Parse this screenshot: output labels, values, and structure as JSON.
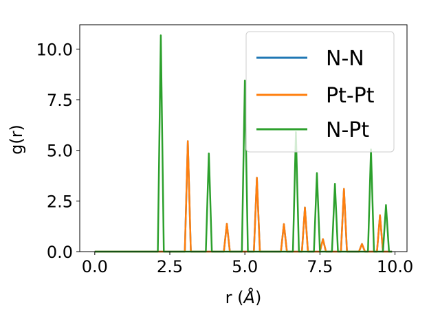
{
  "chart_data": {
    "type": "line",
    "title": "",
    "xlabel_main": "r (",
    "xlabel_symbol": "Å",
    "xlabel_close": ")",
    "ylabel": "g(r)",
    "xlim": [
      -0.5,
      10.4
    ],
    "ylim": [
      0.0,
      11.2
    ],
    "xticks": [
      "0.0",
      "2.5",
      "5.0",
      "7.5",
      "10.0"
    ],
    "yticks": [
      "0.0",
      "2.5",
      "5.0",
      "7.5",
      "10.0"
    ],
    "grid": false,
    "legend_position": "top-right",
    "x": [
      0.0,
      0.1,
      0.2,
      0.3,
      0.4,
      0.5,
      0.6,
      0.7,
      0.8,
      0.9,
      1.0,
      1.1,
      1.2,
      1.3,
      1.4,
      1.5,
      1.6,
      1.7,
      1.8,
      1.9,
      2.0,
      2.1,
      2.2,
      2.3,
      2.4,
      2.5,
      2.6,
      2.7,
      2.8,
      2.9,
      3.0,
      3.1,
      3.2,
      3.3,
      3.4,
      3.5,
      3.6,
      3.7,
      3.8,
      3.9,
      4.0,
      4.1,
      4.2,
      4.3,
      4.4,
      4.5,
      4.6,
      4.7,
      4.8,
      4.9,
      5.0,
      5.1,
      5.2,
      5.3,
      5.4,
      5.5,
      5.6,
      5.7,
      5.8,
      5.9,
      6.0,
      6.1,
      6.2,
      6.3,
      6.4,
      6.5,
      6.6,
      6.7,
      6.8,
      6.9,
      7.0,
      7.1,
      7.2,
      7.3,
      7.4,
      7.5,
      7.6,
      7.7,
      7.8,
      7.9,
      8.0,
      8.1,
      8.2,
      8.3,
      8.4,
      8.5,
      8.6,
      8.7,
      8.8,
      8.9,
      9.0,
      9.1,
      9.2,
      9.3,
      9.4,
      9.5,
      9.6,
      9.7,
      9.8,
      9.9
    ],
    "series": [
      {
        "name": "N-N",
        "color": "#1f77b4",
        "values": [
          0,
          0,
          0,
          0,
          0,
          0,
          0,
          0,
          0,
          0,
          0,
          0,
          0,
          0,
          0,
          0,
          0,
          0,
          0,
          0,
          0,
          0,
          0,
          0,
          0,
          0,
          0,
          0,
          0,
          0,
          0,
          5.45,
          0,
          0,
          0,
          0,
          0,
          0,
          0,
          0,
          0,
          0,
          0,
          0,
          1.38,
          0,
          0,
          0,
          0,
          0,
          0,
          0,
          0,
          0,
          3.65,
          0,
          0,
          0,
          0,
          0,
          0,
          0,
          0,
          1.36,
          0,
          0,
          0,
          0,
          0,
          0,
          2.18,
          0,
          0,
          0,
          0,
          0,
          0.62,
          0,
          0,
          0,
          0,
          0,
          0,
          3.1,
          0,
          0,
          0,
          0,
          0,
          0.38,
          0,
          0,
          0,
          0,
          0,
          1.8,
          0,
          0,
          0,
          0
        ]
      },
      {
        "name": "Pt-Pt",
        "color": "#ff7f0e",
        "values": [
          0,
          0,
          0,
          0,
          0,
          0,
          0,
          0,
          0,
          0,
          0,
          0,
          0,
          0,
          0,
          0,
          0,
          0,
          0,
          0,
          0,
          0,
          0,
          0,
          0,
          0,
          0,
          0,
          0,
          0,
          0,
          5.45,
          0,
          0,
          0,
          0,
          0,
          0,
          0,
          0,
          0,
          0,
          0,
          0,
          1.38,
          0,
          0,
          0,
          0,
          0,
          0,
          0,
          0,
          0,
          3.65,
          0,
          0,
          0,
          0,
          0,
          0,
          0,
          0,
          1.36,
          0,
          0,
          0,
          0,
          0,
          0,
          2.18,
          0,
          0,
          0,
          0,
          0,
          0.62,
          0,
          0,
          0,
          0,
          0,
          0,
          3.1,
          0,
          0,
          0,
          0,
          0,
          0.38,
          0,
          0,
          0,
          0,
          0,
          1.8,
          0,
          0,
          0,
          0
        ]
      },
      {
        "name": "N-Pt",
        "color": "#2ca02c",
        "values": [
          0,
          0,
          0,
          0,
          0,
          0,
          0,
          0,
          0,
          0,
          0,
          0,
          0,
          0,
          0,
          0,
          0,
          0,
          0,
          0,
          0,
          0,
          10.68,
          0,
          0,
          0,
          0,
          0,
          0,
          0,
          0,
          0,
          0,
          0,
          0,
          0,
          0,
          0,
          4.85,
          0,
          0,
          0,
          0,
          0,
          0,
          0,
          0,
          0,
          0,
          0,
          8.45,
          0,
          0,
          0,
          0,
          0,
          0,
          0,
          0,
          0,
          0,
          0,
          0,
          0,
          0,
          0,
          0,
          5.9,
          0,
          0,
          0,
          0,
          0,
          0,
          3.88,
          0,
          0,
          0,
          0,
          0,
          3.35,
          0,
          0,
          0,
          0,
          0,
          0,
          0,
          0,
          0,
          0,
          0,
          5.05,
          0,
          0,
          0,
          0,
          2.3,
          0,
          0
        ]
      }
    ]
  }
}
